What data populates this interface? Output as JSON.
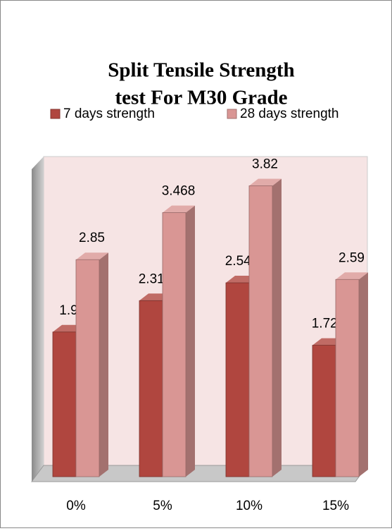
{
  "chart_data": {
    "type": "bar3d",
    "title": "Split Tensile Strength test For M30 Grade",
    "title_lines": [
      "Split Tensile Strength",
      "test For M30 Grade"
    ],
    "categories": [
      "0%",
      "5%",
      "10%",
      "15%"
    ],
    "series": [
      {
        "name": "7 days strength",
        "color": "#b0463f",
        "values": [
          1.9,
          2.312,
          2.546,
          1.726
        ]
      },
      {
        "name": "28 days strength",
        "color": "#d99694",
        "values": [
          2.85,
          3.468,
          3.82,
          2.59
        ]
      }
    ],
    "ylim": [
      0,
      4
    ],
    "legend": "top"
  }
}
